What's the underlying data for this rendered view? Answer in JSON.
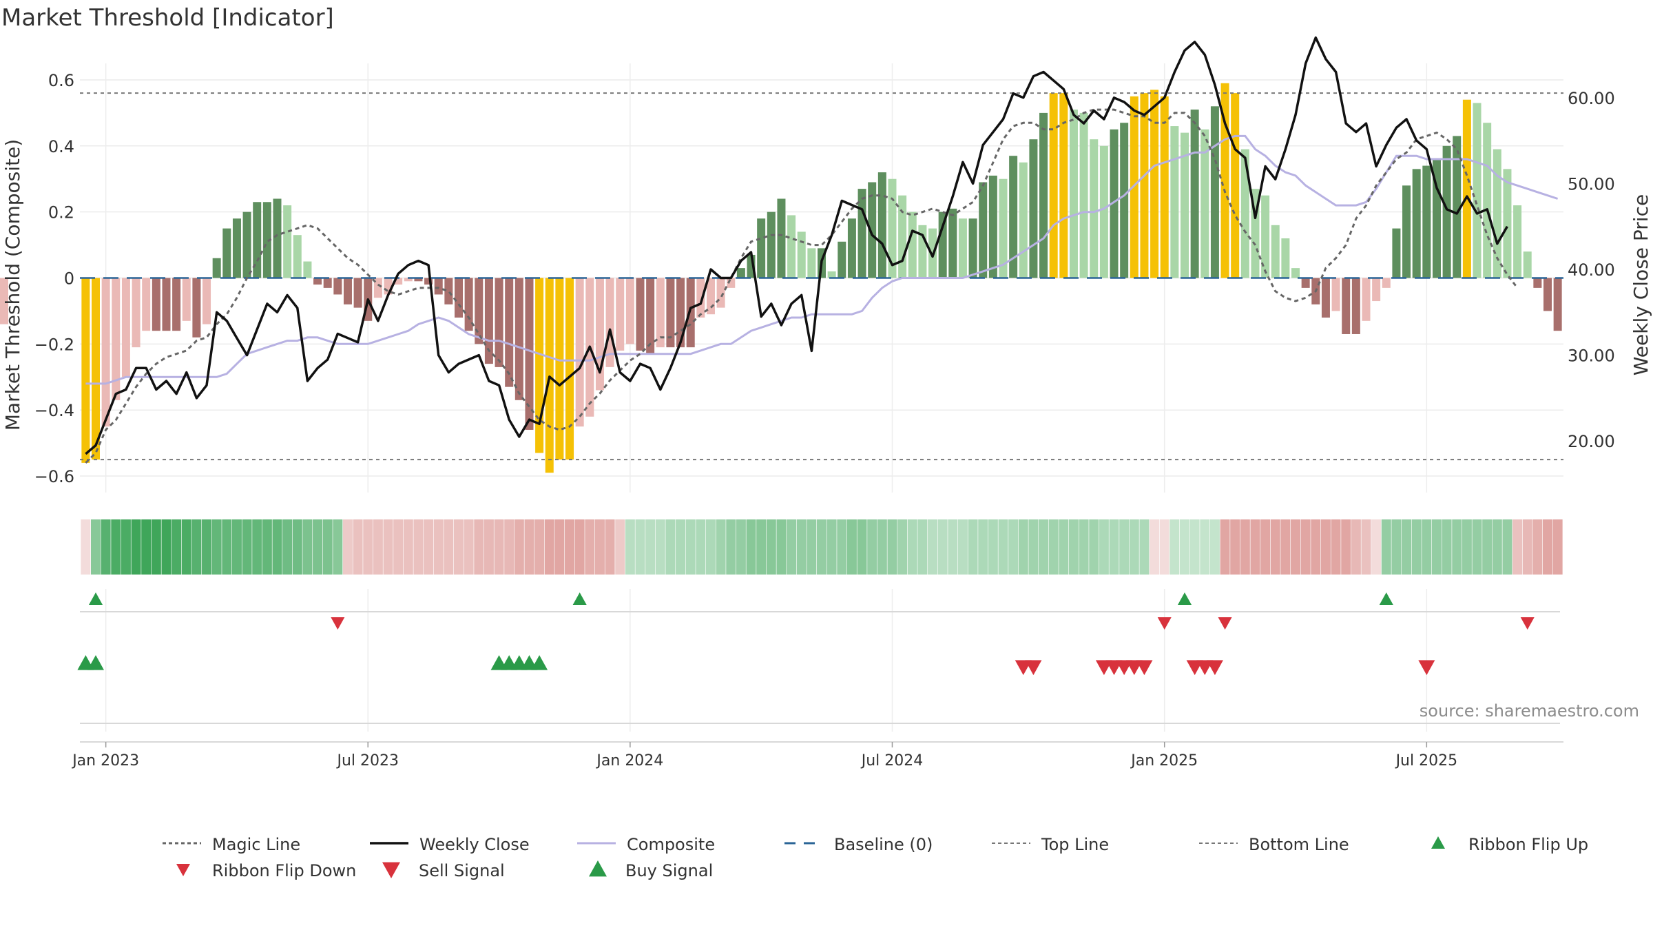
{
  "chart_data": {
    "type": "bar",
    "title": "Market Threshold [Indicator]",
    "ylabel": "Market Threshold (Composite)",
    "y2label": "Weekly Close Price",
    "source_note": "source: sharemaestro.com",
    "ylim": [
      -0.65,
      0.65
    ],
    "y2lim": [
      14.0,
      64.0
    ],
    "yticks": [
      "0.6",
      "0.4",
      "0.2",
      "0",
      "−0.2",
      "−0.4",
      "−0.6"
    ],
    "yticks_values": [
      0.6,
      0.4,
      0.2,
      0,
      -0.2,
      -0.4,
      -0.6
    ],
    "y2ticks": [
      "60.00",
      "50.00",
      "40.00",
      "30.00",
      "20.00"
    ],
    "y2ticks_values": [
      60,
      50,
      40,
      30,
      20
    ],
    "xticks": [
      "Jan 2023",
      "Jul 2023",
      "Jan 2024",
      "Jul 2024",
      "Jan 2025",
      "Jul 2025"
    ],
    "xticks_dates": [
      "2023-01-02",
      "2023-07-03",
      "2024-01-01",
      "2024-07-01",
      "2025-01-06",
      "2025-07-07"
    ],
    "top_line": 0.56,
    "bottom_line": -0.55,
    "baseline": 0,
    "grid": true,
    "legend_position": "bottom",
    "legend": [
      "Magic Line",
      "Weekly Close",
      "Composite",
      "Baseline (0)",
      "Top Line",
      "Bottom Line",
      "Ribbon Flip Up",
      "Ribbon Flip Down",
      "Sell Signal",
      "Buy Signal"
    ],
    "colors": {
      "extreme": "#f5c105",
      "pos_strong": "#5e8f5e",
      "pos_weak": "#a9d6a7",
      "neg_strong": "#a86f6c",
      "neg_weak": "#eab9b6",
      "weekly_close": "#111111",
      "composite": "#b7b1e2",
      "magic_line": "#666666",
      "baseline": "#2a6496",
      "threshold_lines": "#777777",
      "up_marker": "#2a9a48",
      "down_marker": "#d8323c"
    },
    "weekly_dates": [
      "2022-12-19",
      "2022-12-26",
      "2023-01-02",
      "2023-01-09",
      "2023-01-16",
      "2023-01-23",
      "2023-01-30",
      "2023-02-06",
      "2023-02-13",
      "2023-02-20",
      "2023-02-27",
      "2023-03-06",
      "2023-03-13",
      "2023-03-20",
      "2023-03-27",
      "2023-04-03",
      "2023-04-10",
      "2023-04-17",
      "2023-04-24",
      "2023-05-01",
      "2023-05-08",
      "2023-05-15",
      "2023-05-22",
      "2023-05-29",
      "2023-06-05",
      "2023-06-12",
      "2023-06-19",
      "2023-06-26",
      "2023-07-03",
      "2023-07-10",
      "2023-07-17",
      "2023-07-24",
      "2023-07-31",
      "2023-08-07",
      "2023-08-14",
      "2023-08-21",
      "2023-08-28",
      "2023-09-04",
      "2023-09-11",
      "2023-09-18",
      "2023-09-25",
      "2023-10-02",
      "2023-10-09",
      "2023-10-16",
      "2023-10-23",
      "2023-10-30",
      "2023-11-06",
      "2023-11-13",
      "2023-11-20",
      "2023-11-27",
      "2023-12-04",
      "2023-12-11",
      "2023-12-18",
      "2023-12-25",
      "2024-01-01",
      "2024-01-08",
      "2024-01-15",
      "2024-01-22",
      "2024-01-29",
      "2024-02-05",
      "2024-02-12",
      "2024-02-19",
      "2024-02-26",
      "2024-03-04",
      "2024-03-11",
      "2024-03-18",
      "2024-03-25",
      "2024-04-01",
      "2024-04-08",
      "2024-04-15",
      "2024-04-22",
      "2024-04-29",
      "2024-05-06",
      "2024-05-13",
      "2024-05-20",
      "2024-05-27",
      "2024-06-03",
      "2024-06-10",
      "2024-06-17",
      "2024-06-24",
      "2024-07-01",
      "2024-07-08",
      "2024-07-15",
      "2024-07-22",
      "2024-07-29",
      "2024-08-05",
      "2024-08-12",
      "2024-08-19",
      "2024-08-26",
      "2024-09-02",
      "2024-09-09",
      "2024-09-16",
      "2024-09-23",
      "2024-09-30",
      "2024-10-07",
      "2024-10-14",
      "2024-10-21",
      "2024-10-28",
      "2024-11-04",
      "2024-11-11",
      "2024-11-18",
      "2024-11-25",
      "2024-12-02",
      "2024-12-09",
      "2024-12-16",
      "2024-12-23",
      "2024-12-30",
      "2025-01-06",
      "2025-01-13",
      "2025-01-20",
      "2025-01-27",
      "2025-02-03",
      "2025-02-10",
      "2025-02-17",
      "2025-02-24",
      "2025-03-03",
      "2025-03-10",
      "2025-03-17",
      "2025-03-24",
      "2025-03-31",
      "2025-04-07",
      "2025-04-14",
      "2025-04-21",
      "2025-04-28",
      "2025-05-05",
      "2025-05-12",
      "2025-05-19",
      "2025-05-26",
      "2025-06-02",
      "2025-06-09",
      "2025-06-16",
      "2025-06-23",
      "2025-06-30",
      "2025-07-07",
      "2025-07-14",
      "2025-07-21",
      "2025-07-28",
      "2025-08-04",
      "2025-08-11",
      "2025-08-18",
      "2025-08-25",
      "2025-09-01",
      "2025-09-08",
      "2025-09-15",
      "2025-09-22",
      "2025-09-29",
      "2025-10-06"
    ],
    "composite_bars": [
      -0.56,
      -0.55,
      -0.45,
      -0.37,
      -0.3,
      -0.21,
      -0.16,
      -0.16,
      -0.16,
      -0.16,
      -0.13,
      -0.18,
      -0.14,
      0.06,
      0.15,
      0.18,
      0.2,
      0.23,
      0.23,
      0.24,
      0.22,
      0.13,
      0.05,
      -0.02,
      -0.03,
      -0.05,
      -0.08,
      -0.09,
      -0.13,
      -0.06,
      -0.05,
      -0.02,
      -0.01,
      -0.01,
      -0.02,
      -0.05,
      -0.08,
      -0.12,
      -0.16,
      -0.2,
      -0.26,
      -0.27,
      -0.33,
      -0.37,
      -0.46,
      -0.53,
      -0.59,
      -0.55,
      -0.55,
      -0.45,
      -0.42,
      -0.34,
      -0.27,
      -0.22,
      -0.2,
      -0.22,
      -0.23,
      -0.21,
      -0.21,
      -0.21,
      -0.21,
      -0.12,
      -0.11,
      -0.09,
      -0.03,
      0.03,
      0.07,
      0.18,
      0.2,
      0.24,
      0.19,
      0.14,
      0.09,
      0.09,
      0.02,
      0.11,
      0.18,
      0.27,
      0.29,
      0.32,
      0.3,
      0.25,
      0.2,
      0.16,
      0.15,
      0.2,
      0.21,
      0.18,
      0.18,
      0.29,
      0.31,
      0.3,
      0.37,
      0.35,
      0.42,
      0.5,
      0.56,
      0.56,
      0.51,
      0.5,
      0.42,
      0.4,
      0.45,
      0.47,
      0.55,
      0.56,
      0.57,
      0.55,
      0.46,
      0.44,
      0.51,
      0.45,
      0.52,
      0.59,
      0.56,
      0.39,
      0.27,
      0.25,
      0.16,
      0.12,
      0.03,
      -0.03,
      -0.08,
      -0.12,
      -0.1,
      -0.17,
      -0.17,
      -0.13,
      -0.07,
      -0.03,
      0.15,
      0.28,
      0.33,
      0.34,
      0.36,
      0.4,
      0.43,
      0.54,
      0.53,
      0.47,
      0.39,
      0.33,
      0.22,
      0.08,
      -0.03,
      -0.1,
      -0.16,
      -0.14
    ],
    "weekly_close": [
      18.5,
      19.5,
      22.5,
      25.5,
      26.0,
      28.5,
      28.5,
      26.0,
      27.0,
      25.5,
      28.0,
      25.0,
      26.5,
      35.0,
      34.0,
      32.0,
      30.0,
      33.0,
      36.0,
      35.0,
      37.0,
      35.5,
      27.0,
      28.5,
      29.5,
      32.5,
      32.0,
      31.5,
      36.5,
      34.0,
      37.0,
      39.5,
      40.5,
      41.0,
      40.5,
      30.0,
      28.0,
      29.0,
      29.5,
      30.0,
      27.0,
      26.5,
      22.5,
      20.5,
      22.5,
      22.0,
      27.5,
      26.5,
      27.5,
      28.5,
      31.0,
      28.0,
      33.0,
      28.0,
      27.0,
      29.0,
      28.5,
      26.0,
      28.5,
      31.5,
      35.5,
      36.0,
      40.0,
      39.0,
      39.0,
      41.0,
      42.0,
      34.5,
      36.0,
      33.5,
      36.0,
      37.0,
      30.5,
      41.0,
      44.0,
      48.0,
      47.5,
      47.0,
      44.0,
      43.0,
      40.5,
      41.0,
      44.5,
      44.0,
      41.5,
      45.0,
      48.5,
      52.5,
      50.0,
      54.5,
      56.0,
      57.5,
      60.5,
      60.0,
      62.5,
      63.0,
      62.0,
      61.0,
      58.0,
      57.0,
      58.5,
      57.5,
      60.0,
      59.5,
      58.5,
      58.0,
      59.0,
      60.0,
      63.0,
      65.5,
      66.5,
      65.0,
      61.5,
      57.0,
      54.0,
      53.0,
      46.0,
      52.0,
      50.5,
      54.0,
      58.0,
      64.0,
      67.0,
      64.5,
      63.0,
      57.0,
      56.0,
      57.0,
      52.0,
      54.5,
      56.5,
      57.5,
      55.0,
      54.0,
      49.5,
      47.0,
      46.5,
      48.5,
      46.5,
      47.0,
      43.0,
      45.0
    ],
    "composite_line": [
      -0.32,
      -0.32,
      -0.32,
      -0.31,
      -0.3,
      -0.3,
      -0.3,
      -0.3,
      -0.3,
      -0.3,
      -0.3,
      -0.3,
      -0.3,
      -0.3,
      -0.29,
      -0.26,
      -0.23,
      -0.22,
      -0.21,
      -0.2,
      -0.19,
      -0.19,
      -0.18,
      -0.18,
      -0.19,
      -0.2,
      -0.2,
      -0.2,
      -0.2,
      -0.19,
      -0.18,
      -0.17,
      -0.16,
      -0.14,
      -0.13,
      -0.12,
      -0.13,
      -0.15,
      -0.17,
      -0.18,
      -0.19,
      -0.19,
      -0.2,
      -0.21,
      -0.22,
      -0.23,
      -0.24,
      -0.25,
      -0.25,
      -0.25,
      -0.25,
      -0.24,
      -0.23,
      -0.23,
      -0.23,
      -0.23,
      -0.23,
      -0.23,
      -0.23,
      -0.23,
      -0.23,
      -0.22,
      -0.21,
      -0.2,
      -0.2,
      -0.18,
      -0.16,
      -0.15,
      -0.14,
      -0.13,
      -0.12,
      -0.12,
      -0.11,
      -0.11,
      -0.11,
      -0.11,
      -0.11,
      -0.1,
      -0.06,
      -0.03,
      -0.01,
      0.0,
      0.0,
      0.0,
      0.0,
      0.0,
      0.0,
      0.0,
      0.01,
      0.02,
      0.03,
      0.04,
      0.06,
      0.08,
      0.1,
      0.12,
      0.16,
      0.18,
      0.19,
      0.2,
      0.2,
      0.21,
      0.23,
      0.25,
      0.28,
      0.31,
      0.34,
      0.35,
      0.36,
      0.37,
      0.38,
      0.38,
      0.4,
      0.42,
      0.43,
      0.43,
      0.39,
      0.37,
      0.34,
      0.32,
      0.31,
      0.28,
      0.26,
      0.24,
      0.22,
      0.22,
      0.22,
      0.23,
      0.27,
      0.32,
      0.37,
      0.37,
      0.37,
      0.36,
      0.36,
      0.36,
      0.36,
      0.36,
      0.35,
      0.34,
      0.31,
      0.29,
      0.28,
      0.27,
      0.26,
      0.25,
      0.24
    ],
    "magic_line": [
      -0.56,
      -0.53,
      -0.46,
      -0.43,
      -0.38,
      -0.33,
      -0.29,
      -0.26,
      -0.24,
      -0.23,
      -0.22,
      -0.19,
      -0.18,
      -0.14,
      -0.11,
      -0.06,
      0.0,
      0.05,
      0.11,
      0.13,
      0.14,
      0.15,
      0.16,
      0.15,
      0.12,
      0.09,
      0.06,
      0.04,
      0.01,
      -0.02,
      -0.04,
      -0.05,
      -0.04,
      -0.03,
      -0.03,
      -0.03,
      -0.04,
      -0.08,
      -0.12,
      -0.17,
      -0.22,
      -0.25,
      -0.29,
      -0.35,
      -0.39,
      -0.43,
      -0.45,
      -0.46,
      -0.45,
      -0.42,
      -0.38,
      -0.35,
      -0.31,
      -0.28,
      -0.25,
      -0.23,
      -0.2,
      -0.18,
      -0.18,
      -0.16,
      -0.14,
      -0.11,
      -0.09,
      -0.06,
      0.0,
      0.06,
      0.11,
      0.12,
      0.13,
      0.13,
      0.12,
      0.11,
      0.1,
      0.1,
      0.13,
      0.17,
      0.21,
      0.24,
      0.25,
      0.25,
      0.24,
      0.2,
      0.19,
      0.2,
      0.21,
      0.2,
      0.19,
      0.21,
      0.23,
      0.28,
      0.35,
      0.42,
      0.46,
      0.47,
      0.47,
      0.45,
      0.45,
      0.47,
      0.48,
      0.5,
      0.51,
      0.51,
      0.51,
      0.5,
      0.49,
      0.49,
      0.47,
      0.47,
      0.5,
      0.5,
      0.47,
      0.43,
      0.36,
      0.26,
      0.19,
      0.14,
      0.1,
      0.02,
      -0.04,
      -0.06,
      -0.07,
      -0.06,
      -0.04,
      0.03,
      0.06,
      0.1,
      0.18,
      0.22,
      0.28,
      0.32,
      0.36,
      0.38,
      0.42,
      0.43,
      0.44,
      0.42,
      0.39,
      0.31,
      0.22,
      0.13,
      0.06,
      0.01,
      -0.03
    ],
    "ribbon": [
      -0.05,
      0.35,
      0.55,
      0.6,
      0.6,
      0.65,
      0.65,
      0.65,
      0.65,
      0.6,
      0.6,
      0.55,
      0.55,
      0.5,
      0.5,
      0.5,
      0.5,
      0.5,
      0.5,
      0.5,
      0.45,
      0.45,
      0.4,
      0.4,
      0.4,
      0.35,
      -0.15,
      -0.2,
      -0.2,
      -0.2,
      -0.2,
      -0.2,
      -0.2,
      -0.2,
      -0.2,
      -0.2,
      -0.2,
      -0.2,
      -0.2,
      -0.25,
      -0.25,
      -0.25,
      -0.25,
      -0.3,
      -0.3,
      -0.3,
      -0.35,
      -0.35,
      -0.35,
      -0.35,
      -0.3,
      -0.3,
      -0.3,
      -0.15,
      0.15,
      0.15,
      0.15,
      0.15,
      0.2,
      0.2,
      0.2,
      0.2,
      0.2,
      0.25,
      0.3,
      0.3,
      0.35,
      0.35,
      0.35,
      0.35,
      0.3,
      0.3,
      0.3,
      0.3,
      0.3,
      0.3,
      0.35,
      0.35,
      0.3,
      0.3,
      0.3,
      0.25,
      0.2,
      0.2,
      0.15,
      0.15,
      0.15,
      0.15,
      0.2,
      0.2,
      0.2,
      0.2,
      0.2,
      0.25,
      0.25,
      0.25,
      0.25,
      0.25,
      0.25,
      0.25,
      0.25,
      0.2,
      0.2,
      0.2,
      0.2,
      0.2,
      -0.05,
      -0.05,
      0.1,
      0.1,
      0.1,
      0.1,
      0.1,
      -0.35,
      -0.35,
      -0.35,
      -0.35,
      -0.35,
      -0.35,
      -0.35,
      -0.35,
      -0.35,
      -0.35,
      -0.35,
      -0.35,
      -0.35,
      -0.25,
      -0.2,
      -0.05,
      0.3,
      0.3,
      0.3,
      0.3,
      0.3,
      0.3,
      0.3,
      0.3,
      0.3,
      0.3,
      0.3,
      0.3,
      0.3,
      -0.2,
      -0.25,
      -0.3,
      -0.35,
      -0.35
    ],
    "ribbon_flip_up_dates": [
      "2022-12-26",
      "2023-11-27",
      "2025-01-20",
      "2025-06-09"
    ],
    "ribbon_flip_down_dates": [
      "2023-06-12",
      "2025-01-06",
      "2025-02-17",
      "2025-09-15"
    ],
    "buy_signal_dates": [
      "2022-12-19",
      "2022-12-26",
      "2023-10-02",
      "2023-10-09",
      "2023-10-16",
      "2023-10-23",
      "2023-10-30"
    ],
    "sell_signal_dates": [
      "2024-09-30",
      "2024-10-07",
      "2024-11-25",
      "2024-12-02",
      "2024-12-09",
      "2024-12-16",
      "2024-12-23",
      "2025-01-27",
      "2025-02-03",
      "2025-02-10",
      "2025-07-07"
    ]
  }
}
